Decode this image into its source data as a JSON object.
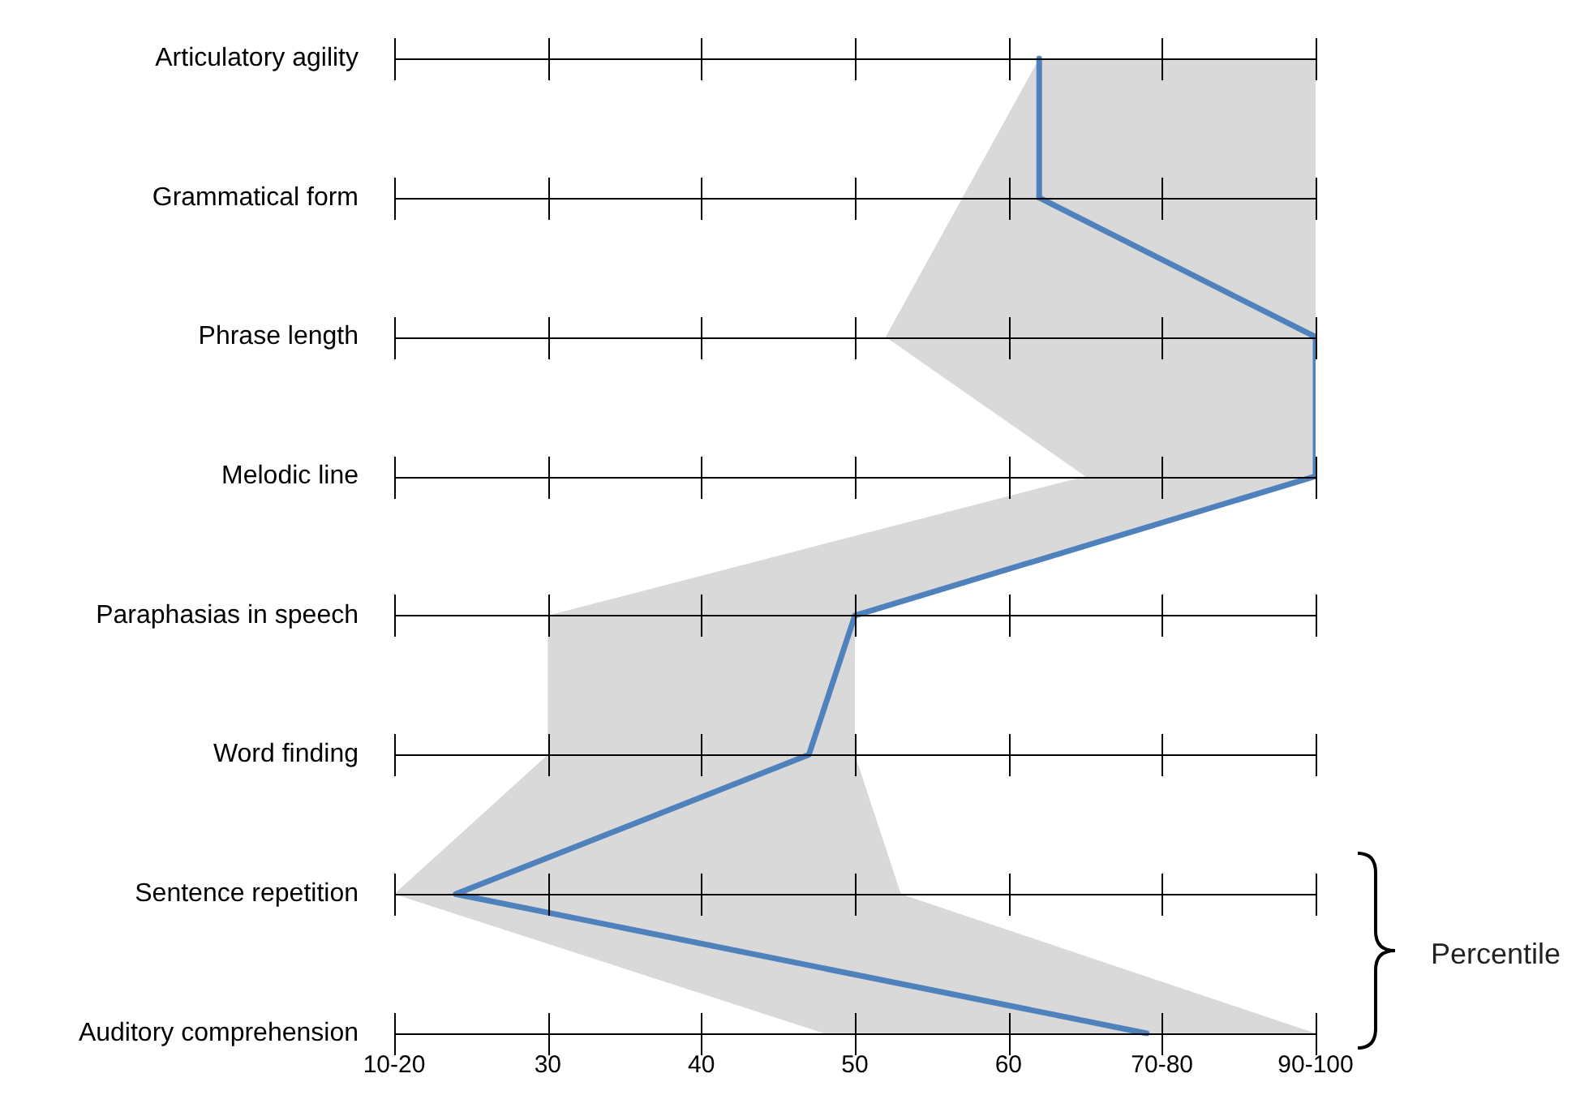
{
  "chart_data": {
    "type": "line",
    "orientation": "horizontal",
    "xlabel": "Percentile",
    "categories": [
      "Articulatory agility",
      "Grammatical form",
      "Phrase length",
      "Melodic line",
      "Paraphasias in speech",
      "Word finding",
      "Sentence repetition",
      "Auditory comprehension"
    ],
    "series": [
      {
        "color": "#4f81bd",
        "values": [
          62,
          62,
          80,
          80,
          50,
          47,
          24,
          69
        ],
        "lower": [
          62,
          57,
          52,
          65,
          30,
          30,
          20,
          48
        ],
        "upper": [
          80,
          80,
          80,
          80,
          50,
          50,
          53,
          80
        ]
      }
    ],
    "xlim": [
      20,
      80
    ],
    "xticks": [
      {
        "value": 20,
        "label": "10-20"
      },
      30,
      40,
      50,
      60,
      {
        "value": 70,
        "label": "70-80"
      },
      {
        "value": 80,
        "label": "90-100"
      }
    ],
    "grid": "y",
    "legend": false,
    "marker": "none",
    "line_style": "solid"
  }
}
